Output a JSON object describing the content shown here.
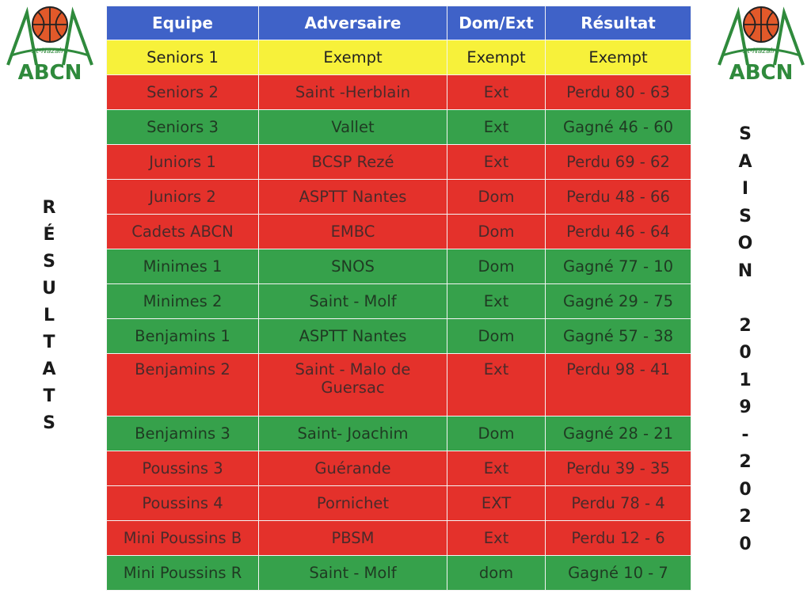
{
  "logo": {
    "text_top": "St-Nazaire",
    "text_bottom": "ABCN"
  },
  "side_left": [
    "R",
    "É",
    "S",
    "U",
    "L",
    "T",
    "A",
    "T",
    "S"
  ],
  "side_right": [
    "S",
    "A",
    "I",
    "S",
    "O",
    "N",
    " ",
    "2",
    "0",
    "1",
    "9",
    "-",
    "2",
    "0",
    "2",
    "0"
  ],
  "colors": {
    "header": "#3f62c8",
    "yellow": "#f7f13a",
    "red": "#e4312b",
    "green": "#36a14b"
  },
  "table": {
    "headers": [
      "Equipe",
      "Adversaire",
      "Dom/Ext",
      "Résultat"
    ],
    "rows": [
      {
        "status": "yellow",
        "equipe": "Seniors 1",
        "adversaire": "Exempt",
        "domext": "Exempt",
        "resultat": "Exempt"
      },
      {
        "status": "red",
        "equipe": "Seniors 2",
        "adversaire": "Saint -Herblain",
        "domext": "Ext",
        "resultat": "Perdu 80 - 63"
      },
      {
        "status": "green",
        "equipe": "Seniors 3",
        "adversaire": "Vallet",
        "domext": "Ext",
        "resultat": "Gagné 46 - 60"
      },
      {
        "status": "red",
        "equipe": "Juniors 1",
        "adversaire": "BCSP Rezé",
        "domext": "Ext",
        "resultat": "Perdu 69 - 62"
      },
      {
        "status": "red",
        "equipe": "Juniors 2",
        "adversaire": "ASPTT Nantes",
        "domext": "Dom",
        "resultat": "Perdu 48 - 66"
      },
      {
        "status": "red",
        "equipe": "Cadets ABCN",
        "adversaire": "EMBC",
        "domext": "Dom",
        "resultat": "Perdu 46 - 64"
      },
      {
        "status": "green",
        "equipe": "Minimes 1",
        "adversaire": "SNOS",
        "domext": "Dom",
        "resultat": "Gagné 77 - 10"
      },
      {
        "status": "green",
        "equipe": "Minimes 2",
        "adversaire": "Saint - Molf",
        "domext": "Ext",
        "resultat": "Gagné 29 - 75"
      },
      {
        "status": "green",
        "equipe": "Benjamins 1",
        "adversaire": "ASPTT Nantes",
        "domext": "Dom",
        "resultat": "Gagné 57 - 38"
      },
      {
        "status": "red",
        "tall": true,
        "equipe": "Benjamins 2",
        "adversaire": "Saint - Malo de Guersac",
        "domext": "Ext",
        "resultat": "Perdu 98 - 41"
      },
      {
        "status": "green",
        "equipe": "Benjamins 3",
        "adversaire": "Saint- Joachim",
        "domext": "Dom",
        "resultat": "Gagné  28 - 21"
      },
      {
        "status": "red",
        "equipe": "Poussins 3",
        "adversaire": "Guérande",
        "domext": "Ext",
        "resultat": "Perdu 39 - 35"
      },
      {
        "status": "red",
        "equipe": "Poussins 4",
        "adversaire": "Pornichet",
        "domext": "EXT",
        "resultat": "Perdu 78 - 4"
      },
      {
        "status": "red",
        "equipe": "Mini Poussins B",
        "adversaire": "PBSM",
        "domext": "Ext",
        "resultat": "Perdu 12 - 6"
      },
      {
        "status": "green",
        "equipe": "Mini Poussins R",
        "adversaire": "Saint - Molf",
        "domext": "dom",
        "resultat": "Gagné 10 - 7"
      }
    ]
  }
}
